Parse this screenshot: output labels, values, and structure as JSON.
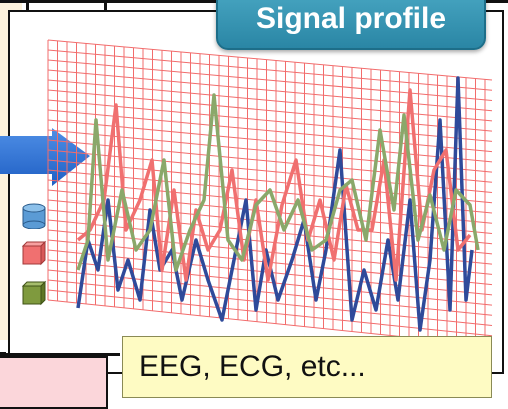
{
  "title_badge": {
    "text": "Signal profile",
    "color": "#2a86a5"
  },
  "caption": {
    "text": "EEG, ECG, etc..."
  },
  "legend_icons": [
    {
      "name": "blue-cylinder-icon",
      "color": "#5b9bd5"
    },
    {
      "name": "red-cube-icon",
      "color": "#f07070"
    },
    {
      "name": "green-cube-icon",
      "color": "#7f9a3e"
    }
  ],
  "signals": [
    {
      "name": "blue",
      "color": "#2f4a9a"
    },
    {
      "name": "red",
      "color": "#f07070"
    },
    {
      "name": "green",
      "color": "#8aa86a"
    }
  ],
  "grid_color": "#f26c6c"
}
